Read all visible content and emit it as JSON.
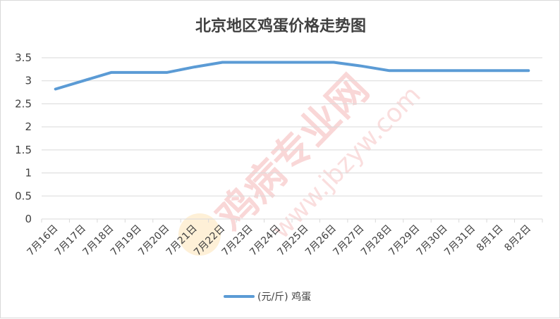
{
  "chart_data": {
    "type": "line",
    "title": "北京地区鸡蛋价格走势图",
    "categories": [
      "7月16日",
      "7月17日",
      "7月18日",
      "7月19日",
      "7月20日",
      "7月21日",
      "7月22日",
      "7月23日",
      "7月24日",
      "7月25日",
      "7月26日",
      "7月27日",
      "7月28日",
      "7月29日",
      "7月30日",
      "7月31日",
      "8月1日",
      "8月2日"
    ],
    "series": [
      {
        "name": "(元/斤) 鸡蛋",
        "values": [
          2.82,
          3.0,
          3.18,
          3.18,
          3.18,
          3.3,
          3.4,
          3.4,
          3.4,
          3.4,
          3.4,
          3.32,
          3.22,
          3.22,
          3.22,
          3.22,
          3.22,
          3.22
        ]
      }
    ],
    "ylim": [
      0,
      3.5
    ],
    "yticks": [
      "0",
      "0.5",
      "1",
      "1.5",
      "2",
      "2.5",
      "3",
      "3.5"
    ],
    "grid": true,
    "legend": "bottom",
    "line_color": "#5b9bd5"
  },
  "watermark": {
    "main": "鸡病专业网",
    "url": "www.jbzyw.com",
    "color": "#f4b6b6"
  }
}
